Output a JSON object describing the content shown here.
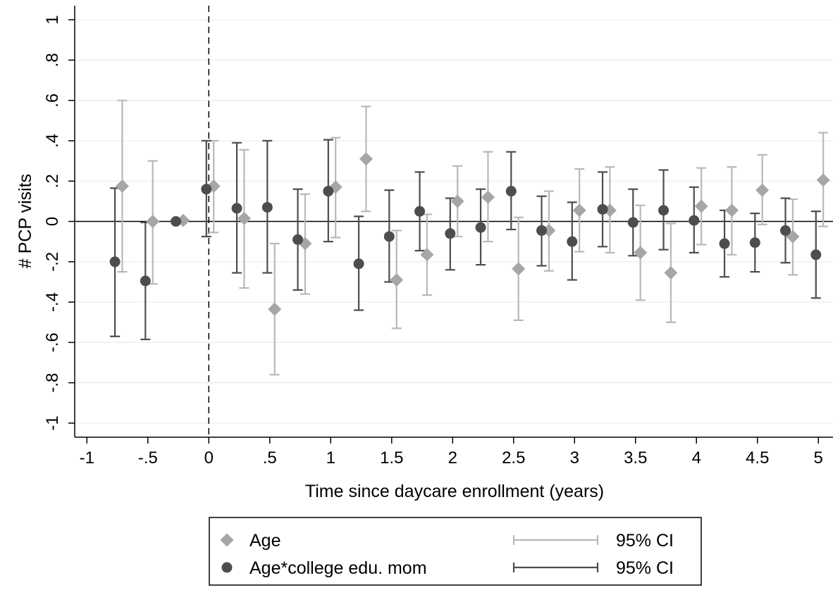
{
  "chart_data": {
    "type": "scatter",
    "title": "",
    "xlabel": "Time since daycare enrollment (years)",
    "ylabel": "# PCP visits",
    "xlim": [
      -1.1,
      5.12
    ],
    "ylim": [
      -1.07,
      1.07
    ],
    "x_ticks": [
      {
        "value": -1,
        "label": "-1"
      },
      {
        "value": -0.5,
        "label": "-.5"
      },
      {
        "value": 0,
        "label": "0"
      },
      {
        "value": 0.5,
        "label": ".5"
      },
      {
        "value": 1,
        "label": "1"
      },
      {
        "value": 1.5,
        "label": "1.5"
      },
      {
        "value": 2,
        "label": "2"
      },
      {
        "value": 2.5,
        "label": "2.5"
      },
      {
        "value": 3,
        "label": "3"
      },
      {
        "value": 3.5,
        "label": "3.5"
      },
      {
        "value": 4,
        "label": "4"
      },
      {
        "value": 4.5,
        "label": "4.5"
      },
      {
        "value": 5,
        "label": "5"
      }
    ],
    "y_ticks": [
      {
        "value": -1,
        "label": "-1"
      },
      {
        "value": -0.8,
        "label": "-.8"
      },
      {
        "value": -0.6,
        "label": "-.6"
      },
      {
        "value": -0.4,
        "label": "-.4"
      },
      {
        "value": -0.2,
        "label": "-.2"
      },
      {
        "value": 0,
        "label": "0"
      },
      {
        "value": 0.2,
        "label": ".2"
      },
      {
        "value": 0.4,
        "label": ".4"
      },
      {
        "value": 0.6,
        "label": ".6"
      },
      {
        "value": 0.8,
        "label": ".8"
      },
      {
        "value": 1,
        "label": "1"
      }
    ],
    "grid": true,
    "reference_lines": {
      "horizontal_y": 0,
      "vertical_dashed_x": 0
    },
    "legend_placement": "bottom",
    "series": [
      {
        "name": "Age",
        "marker": "diamond",
        "color": "#a6a6a6",
        "ci_label": "95% CI",
        "ci_color": "#b8b8b8",
        "points": [
          {
            "x": -0.71,
            "y": 0.175,
            "lo": -0.25,
            "hi": 0.6
          },
          {
            "x": -0.46,
            "y": 0.0,
            "lo": -0.31,
            "hi": 0.3
          },
          {
            "x": -0.21,
            "y": 0.005,
            "lo": null,
            "hi": null
          },
          {
            "x": 0.04,
            "y": 0.175,
            "lo": -0.055,
            "hi": 0.4
          },
          {
            "x": 0.29,
            "y": 0.015,
            "lo": -0.33,
            "hi": 0.355
          },
          {
            "x": 0.54,
            "y": -0.435,
            "lo": -0.76,
            "hi": -0.11
          },
          {
            "x": 0.79,
            "y": -0.11,
            "lo": -0.36,
            "hi": 0.135
          },
          {
            "x": 1.04,
            "y": 0.17,
            "lo": -0.08,
            "hi": 0.415
          },
          {
            "x": 1.29,
            "y": 0.31,
            "lo": 0.05,
            "hi": 0.57
          },
          {
            "x": 1.54,
            "y": -0.29,
            "lo": -0.53,
            "hi": -0.045
          },
          {
            "x": 1.79,
            "y": -0.165,
            "lo": -0.365,
            "hi": 0.035
          },
          {
            "x": 2.04,
            "y": 0.1,
            "lo": -0.075,
            "hi": 0.275
          },
          {
            "x": 2.29,
            "y": 0.12,
            "lo": -0.1,
            "hi": 0.345
          },
          {
            "x": 2.54,
            "y": -0.235,
            "lo": -0.49,
            "hi": 0.02
          },
          {
            "x": 2.79,
            "y": -0.045,
            "lo": -0.245,
            "hi": 0.15
          },
          {
            "x": 3.04,
            "y": 0.055,
            "lo": -0.15,
            "hi": 0.26
          },
          {
            "x": 3.29,
            "y": 0.055,
            "lo": -0.155,
            "hi": 0.27
          },
          {
            "x": 3.54,
            "y": -0.155,
            "lo": -0.39,
            "hi": 0.08
          },
          {
            "x": 3.79,
            "y": -0.255,
            "lo": -0.5,
            "hi": -0.01
          },
          {
            "x": 4.04,
            "y": 0.075,
            "lo": -0.115,
            "hi": 0.265
          },
          {
            "x": 4.29,
            "y": 0.055,
            "lo": -0.165,
            "hi": 0.27
          },
          {
            "x": 4.54,
            "y": 0.155,
            "lo": -0.015,
            "hi": 0.33
          },
          {
            "x": 4.79,
            "y": -0.075,
            "lo": -0.265,
            "hi": 0.11
          },
          {
            "x": 5.04,
            "y": 0.205,
            "lo": -0.025,
            "hi": 0.44
          }
        ]
      },
      {
        "name": "Age*college edu. mom",
        "marker": "circle",
        "color": "#4d4d4d",
        "ci_label": "95% CI",
        "ci_color": "#4d4d4d",
        "points": [
          {
            "x": -0.77,
            "y": -0.2,
            "lo": -0.57,
            "hi": 0.165
          },
          {
            "x": -0.52,
            "y": -0.295,
            "lo": -0.585,
            "hi": -0.005
          },
          {
            "x": -0.27,
            "y": 0.0,
            "lo": null,
            "hi": null
          },
          {
            "x": -0.02,
            "y": 0.16,
            "lo": -0.075,
            "hi": 0.4
          },
          {
            "x": 0.23,
            "y": 0.065,
            "lo": -0.255,
            "hi": 0.39
          },
          {
            "x": 0.48,
            "y": 0.07,
            "lo": -0.255,
            "hi": 0.4
          },
          {
            "x": 0.73,
            "y": -0.09,
            "lo": -0.34,
            "hi": 0.16
          },
          {
            "x": 0.98,
            "y": 0.15,
            "lo": -0.1,
            "hi": 0.405
          },
          {
            "x": 1.23,
            "y": -0.21,
            "lo": -0.44,
            "hi": 0.025
          },
          {
            "x": 1.48,
            "y": -0.075,
            "lo": -0.3,
            "hi": 0.155
          },
          {
            "x": 1.73,
            "y": 0.05,
            "lo": -0.145,
            "hi": 0.245
          },
          {
            "x": 1.98,
            "y": -0.06,
            "lo": -0.24,
            "hi": 0.115
          },
          {
            "x": 2.23,
            "y": -0.03,
            "lo": -0.215,
            "hi": 0.16
          },
          {
            "x": 2.48,
            "y": 0.15,
            "lo": -0.04,
            "hi": 0.345
          },
          {
            "x": 2.73,
            "y": -0.045,
            "lo": -0.22,
            "hi": 0.125
          },
          {
            "x": 2.98,
            "y": -0.1,
            "lo": -0.29,
            "hi": 0.095
          },
          {
            "x": 3.23,
            "y": 0.06,
            "lo": -0.125,
            "hi": 0.245
          },
          {
            "x": 3.48,
            "y": -0.005,
            "lo": -0.17,
            "hi": 0.16
          },
          {
            "x": 3.73,
            "y": 0.055,
            "lo": -0.14,
            "hi": 0.255
          },
          {
            "x": 3.98,
            "y": 0.005,
            "lo": -0.155,
            "hi": 0.17
          },
          {
            "x": 4.23,
            "y": -0.11,
            "lo": -0.275,
            "hi": 0.055
          },
          {
            "x": 4.48,
            "y": -0.105,
            "lo": -0.25,
            "hi": 0.04
          },
          {
            "x": 4.73,
            "y": -0.045,
            "lo": -0.205,
            "hi": 0.115
          },
          {
            "x": 4.98,
            "y": -0.165,
            "lo": -0.38,
            "hi": 0.05
          }
        ]
      }
    ]
  }
}
